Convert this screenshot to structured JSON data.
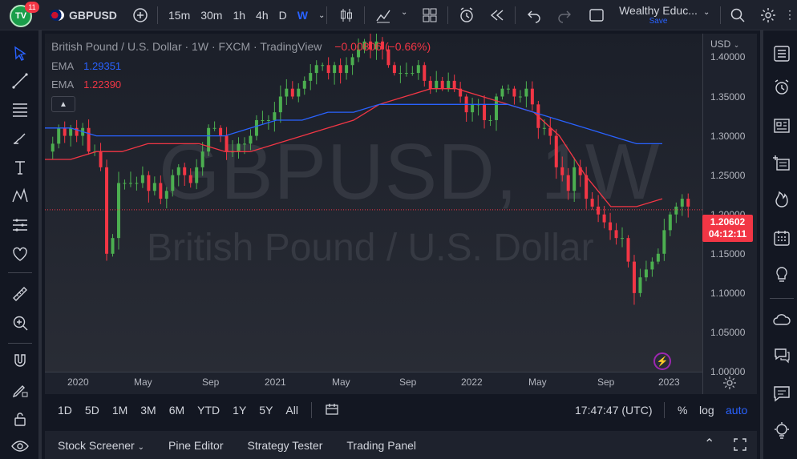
{
  "app": {
    "logo_text": "TV",
    "notification_count": "11",
    "symbol": "GBPUSD",
    "intervals": [
      "15m",
      "30m",
      "1h",
      "4h",
      "D",
      "W"
    ],
    "active_interval": "W",
    "layout_name": "Wealthy Educ...",
    "layout_save": "Save"
  },
  "legend": {
    "title": "British Pound / U.S. Dollar · 1W · FXCM · TradingView",
    "change": "−0.00806 (−0.66%)",
    "emas": [
      {
        "label": "EMA",
        "value": "1.29351",
        "color": "#2962ff"
      },
      {
        "label": "EMA",
        "value": "1.22390",
        "color": "#f23645"
      }
    ]
  },
  "watermark": {
    "symbol": "GBPUSD, 1W",
    "description": "British Pound / U.S. Dollar"
  },
  "price_axis": {
    "currency": "USD",
    "current_price": "1.20602",
    "countdown": "04:12:11"
  },
  "chart_data": {
    "type": "candlestick",
    "title": "British Pound / U.S. Dollar · 1W · FXCM · TradingView",
    "ylim": [
      1.0,
      1.43
    ],
    "y_ticks": [
      "1.40000",
      "1.35000",
      "1.30000",
      "1.25000",
      "1.20000",
      "1.15000",
      "1.10000",
      "1.05000",
      "1.00000"
    ],
    "x_ticks": [
      "2020",
      "May",
      "Sep",
      "2021",
      "May",
      "Sep",
      "2022",
      "May",
      "Sep",
      "2023"
    ],
    "current_price": 1.20602,
    "candles_close_approx": [
      1.29,
      1.31,
      1.3,
      1.31,
      1.3,
      1.31,
      1.28,
      1.28,
      1.26,
      1.15,
      1.17,
      1.24,
      1.24,
      1.24,
      1.24,
      1.25,
      1.23,
      1.24,
      1.22,
      1.23,
      1.25,
      1.26,
      1.25,
      1.24,
      1.26,
      1.28,
      1.31,
      1.31,
      1.3,
      1.28,
      1.28,
      1.29,
      1.29,
      1.3,
      1.32,
      1.32,
      1.32,
      1.33,
      1.35,
      1.36,
      1.35,
      1.36,
      1.37,
      1.38,
      1.39,
      1.39,
      1.38,
      1.39,
      1.38,
      1.39,
      1.4,
      1.41,
      1.42,
      1.41,
      1.42,
      1.41,
      1.39,
      1.38,
      1.38,
      1.38,
      1.38,
      1.39,
      1.37,
      1.36,
      1.37,
      1.36,
      1.37,
      1.36,
      1.35,
      1.33,
      1.34,
      1.34,
      1.32,
      1.32,
      1.35,
      1.36,
      1.36,
      1.35,
      1.35,
      1.36,
      1.34,
      1.31,
      1.31,
      1.3,
      1.26,
      1.25,
      1.23,
      1.26,
      1.25,
      1.22,
      1.21,
      1.2,
      1.19,
      1.18,
      1.17,
      1.17,
      1.14,
      1.1,
      1.12,
      1.13,
      1.14,
      1.15,
      1.18,
      1.2,
      1.21,
      1.22,
      1.21
    ],
    "series": [
      {
        "name": "EMA",
        "values_approx": [
          1.27,
          1.27,
          1.28,
          1.28,
          1.29,
          1.29,
          1.29,
          1.28,
          1.28,
          1.29,
          1.3,
          1.31,
          1.32,
          1.34,
          1.35,
          1.36,
          1.36,
          1.35,
          1.34,
          1.33,
          1.3,
          1.25,
          1.21,
          1.21,
          1.22
        ],
        "color": "#f23645"
      },
      {
        "name": "EMA",
        "values_approx": [
          1.31,
          1.31,
          1.3,
          1.3,
          1.3,
          1.3,
          1.3,
          1.3,
          1.31,
          1.32,
          1.32,
          1.33,
          1.33,
          1.34,
          1.34,
          1.34,
          1.34,
          1.34,
          1.34,
          1.33,
          1.32,
          1.31,
          1.3,
          1.29,
          1.29
        ],
        "color": "#2962ff"
      }
    ]
  },
  "range_bar": {
    "ranges": [
      "1D",
      "5D",
      "1M",
      "3M",
      "6M",
      "YTD",
      "1Y",
      "5Y",
      "All"
    ],
    "clock": "17:47:47 (UTC)",
    "percent": "%",
    "log": "log",
    "auto": "auto"
  },
  "bottom_panel": {
    "tabs": [
      "Stock Screener",
      "Pine Editor",
      "Strategy Tester",
      "Trading Panel"
    ]
  }
}
